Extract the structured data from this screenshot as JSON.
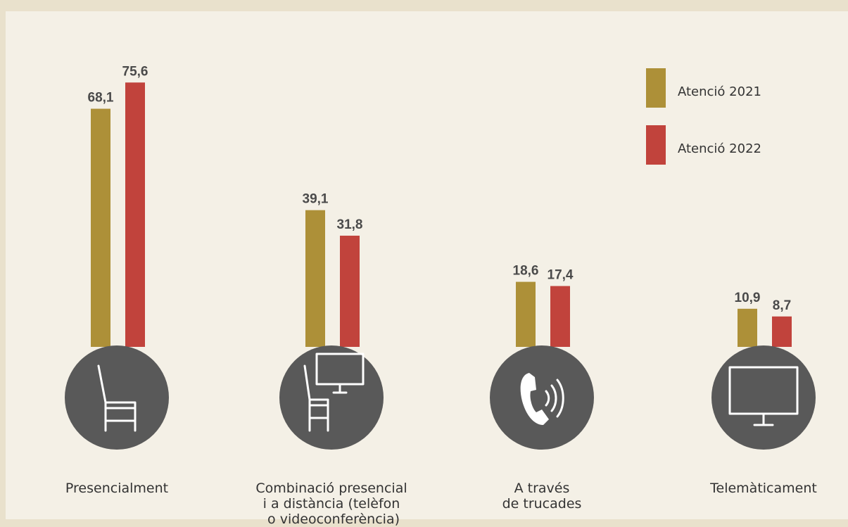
{
  "chart_data": {
    "type": "bar",
    "categories": [
      "Presencialment",
      "Combinació presencial\ni a distància (telèfon\n o videoconferència)",
      "A través\nde trucades",
      "Telemàticament"
    ],
    "series": [
      {
        "name": "Atenció 2021",
        "color": "#ad9038",
        "values": [
          68.1,
          39.1,
          18.6,
          10.9
        ],
        "value_labels": [
          "68,1",
          "39,1",
          "18,6",
          "10,9"
        ]
      },
      {
        "name": "Atenció 2022",
        "color": "#c1433c",
        "values": [
          75.6,
          31.8,
          17.4,
          8.7
        ],
        "value_labels": [
          "75,6",
          "31,8",
          "17,4",
          "8,7"
        ]
      }
    ],
    "legend": "top-right"
  }
}
